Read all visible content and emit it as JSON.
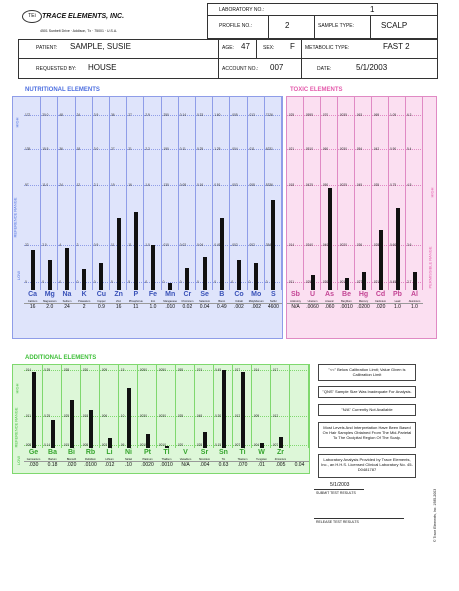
{
  "brand": {
    "name": "TRACE ELEMENTS, INC.",
    "address": "4501 Sunbelt Drive · Addison, Tx · 75001 · U.S.A."
  },
  "header": {
    "lab_no_label": "LABORATORY NO.:",
    "lab_no": "1",
    "profile_label": "PROFILE NO.:",
    "profile": "2",
    "sample_type_label": "SAMPLE TYPE:",
    "sample_type": "SCALP",
    "patient_label": "PATIENT:",
    "patient": "SAMPLE, SUSIE",
    "age_label": "AGE:",
    "age": "47",
    "sex_label": "SEX:",
    "sex": "F",
    "metabolic_label": "METABOLIC TYPE:",
    "metabolic": "FAST 2",
    "requested_label": "REQUESTED BY:",
    "requested": "HOUSE",
    "account_label": "ACCOUNT NO.:",
    "account": "007",
    "date_label": "DATE:",
    "date": "5/1/2003"
  },
  "nutritional": {
    "title": "NUTRITIONAL ELEMENTS",
    "side": {
      "high": "HIGH",
      "ref": "REFERENCE RANGE",
      "low": "LOW"
    },
    "elements": [
      {
        "sym": "Ca",
        "name": "Calcium",
        "val": "16",
        "lvl": 0.27,
        "scale": [
          "172",
          "135",
          "97",
          "22",
          "0"
        ]
      },
      {
        "sym": "Mg",
        "name": "Magnesium",
        "val": "2.0",
        "lvl": 0.2,
        "scale": [
          "20.0",
          "15.5",
          "11.0",
          "2.0",
          "0"
        ]
      },
      {
        "sym": "Na",
        "name": "Sodium",
        "val": "24",
        "lvl": 0.28,
        "scale": [
          "48",
          "36",
          "24",
          "4",
          "0"
        ]
      },
      {
        "sym": "K",
        "name": "Potassium",
        "val": "2",
        "lvl": 0.14,
        "scale": [
          "24",
          "18",
          "12",
          "2",
          "0"
        ]
      },
      {
        "sym": "Cu",
        "name": "Copper",
        "val": "0.9",
        "lvl": 0.18,
        "scale": [
          "3.9",
          "3.0",
          "2.1",
          "0.9",
          "0"
        ]
      },
      {
        "sym": "Zn",
        "name": "Zinc",
        "val": "16",
        "lvl": 0.48,
        "scale": [
          "36",
          "27",
          "19",
          "11",
          "5"
        ]
      },
      {
        "sym": "P",
        "name": "Phosphorus",
        "val": "11",
        "lvl": 0.52,
        "scale": [
          "27",
          "21",
          "16",
          "11",
          "5"
        ]
      },
      {
        "sym": "Fe",
        "name": "Iron",
        "val": "1.0",
        "lvl": 0.3,
        "scale": [
          "2.9",
          "2.2",
          "1.6",
          "1.0",
          "0"
        ]
      },
      {
        "sym": "Mn",
        "name": "Manganese",
        "val": ".010",
        "lvl": 0.05,
        "scale": [
          ".250",
          ".190",
          ".130",
          ".010",
          "0"
        ]
      },
      {
        "sym": "Cr",
        "name": "Chromium",
        "val": "0.02",
        "lvl": 0.15,
        "scale": [
          "0.14",
          "0.11",
          "0.08",
          "0.02",
          "0"
        ]
      },
      {
        "sym": "Se",
        "name": "Selenium",
        "val": "0.04",
        "lvl": 0.22,
        "scale": [
          "0.33",
          "0.25",
          "0.16",
          "0.04",
          "0"
        ]
      },
      {
        "sym": "B",
        "name": "Boron",
        "val": "0.49",
        "lvl": 0.48,
        "scale": [
          "1.60",
          "1.25",
          "0.91",
          "0.49",
          "0"
        ]
      },
      {
        "sym": "Co",
        "name": "Cobalt",
        "val": ".002",
        "lvl": 0.2,
        "scale": [
          ".005",
          ".004",
          ".003",
          ".002",
          "0"
        ]
      },
      {
        "sym": "Mo",
        "name": "Molybdenum",
        "val": ".002",
        "lvl": 0.18,
        "scale": [
          ".013",
          ".011",
          ".008",
          ".002",
          "0"
        ]
      },
      {
        "sym": "S",
        "name": "Sulfur",
        "val": "4600",
        "lvl": 0.6,
        "scale": [
          "7126",
          "6231",
          "5336",
          "3546",
          "0"
        ]
      }
    ]
  },
  "toxic": {
    "title": "TOXIC ELEMENTS",
    "side": {
      "high": "HIGH",
      "ref": "PERMISSIBLE RANGE",
      "low": ""
    },
    "elements": [
      {
        "sym": "Sb",
        "name": "Antimony",
        "val": "N/A",
        "lvl": 0.0,
        "scale": [
          ".025",
          ".021",
          ".018",
          ".014",
          ".011"
        ]
      },
      {
        "sym": "U",
        "name": "Uranium",
        "val": ".0060",
        "lvl": 0.1,
        "scale": [
          ".0595",
          ".0510",
          ".0425",
          ".0340",
          ".0255"
        ]
      },
      {
        "sym": "As",
        "name": "Arsenic",
        "val": ".060",
        "lvl": 0.68,
        "scale": [
          ".070",
          ".060",
          ".050",
          ".040",
          ".030"
        ]
      },
      {
        "sym": "Be",
        "name": "Beryllium",
        "val": ".0010",
        "lvl": 0.08,
        "scale": [
          ".0035",
          ".0030",
          ".0025",
          ".0020",
          ".0015"
        ]
      },
      {
        "sym": "Hg",
        "name": "Mercury",
        "val": ".0200",
        "lvl": 0.12,
        "scale": [
          ".063",
          ".054",
          ".045",
          ".036",
          ".027"
        ]
      },
      {
        "sym": "Cd",
        "name": "Cadmium",
        "val": ".020",
        "lvl": 0.4,
        "scale": [
          ".069",
          ".042",
          ".035",
          ".028",
          ".021"
        ]
      },
      {
        "sym": "Pb",
        "name": "Lead",
        "val": "1.0",
        "lvl": 0.55,
        "scale": [
          "1.05",
          "0.90",
          "0.75",
          "0.60",
          "0.45"
        ]
      },
      {
        "sym": "Al",
        "name": "Aluminum",
        "val": "1.0",
        "lvl": 0.12,
        "scale": [
          "6.3",
          "5.4",
          "4.5",
          "3.6",
          "2.7"
        ]
      }
    ]
  },
  "additional": {
    "title": "ADDITIONAL ELEMENTS",
    "side": {
      "high": "HIGH",
      "ref": "REFERENCE RANGE",
      "low": "LOW"
    },
    "elements": [
      {
        "sym": "Ge",
        "name": "Germanium",
        "val": ".030",
        "lvl": 0.95,
        "scale": [
          ".014",
          ".011",
          ".008"
        ]
      },
      {
        "sym": "Ba",
        "name": "Barium",
        "val": "0.18",
        "lvl": 0.35,
        "scale": [
          "0.39",
          "0.25",
          "0.14"
        ]
      },
      {
        "sym": "Bi",
        "name": "Bismuth",
        "val": ".020",
        "lvl": 0.6,
        "scale": [
          ".038",
          ".025",
          ".015"
        ]
      },
      {
        "sym": "Rb",
        "name": "Rubidium",
        "val": ".0100",
        "lvl": 0.48,
        "scale": [
          ".030",
          ".018",
          ".008"
        ]
      },
      {
        "sym": "Li",
        "name": "Lithium",
        "val": ".012",
        "lvl": 0.12,
        "scale": [
          ".009",
          ".006",
          ".003"
        ]
      },
      {
        "sym": "Ni",
        "name": "Nickel",
        "val": ".10",
        "lvl": 0.75,
        "scale": [
          ".15",
          ".10",
          ".06"
        ]
      },
      {
        "sym": "Pt",
        "name": "Platinum",
        "val": ".0020",
        "lvl": 0.18,
        "scale": [
          ".0050",
          ".0030",
          ".0010"
        ]
      },
      {
        "sym": "Tl",
        "name": "Thallium",
        "val": ".0010",
        "lvl": 0.02,
        "scale": [
          ".0050",
          ".0030",
          ".0010"
        ]
      },
      {
        "sym": "V",
        "name": "Vanadium",
        "val": "N/A",
        "lvl": 0.0,
        "scale": [
          ".055",
          ".035",
          ".020"
        ]
      },
      {
        "sym": "Sr",
        "name": "Strontium",
        "val": ".004",
        "lvl": 0.2,
        "scale": [
          ".074",
          ".048",
          ".028"
        ]
      },
      {
        "sym": "Sn",
        "name": "Tin",
        "val": "0.63",
        "lvl": 0.98,
        "scale": [
          "0.45",
          "0.30",
          "0.15"
        ]
      },
      {
        "sym": "Ti",
        "name": "Titanium",
        "val": ".070",
        "lvl": 0.95,
        "scale": [
          ".017",
          ".012",
          ".007"
        ]
      },
      {
        "sym": "W",
        "name": "Tungsten",
        "val": ".01",
        "lvl": 0.06,
        "scale": [
          ".014",
          ".009",
          ".004"
        ]
      },
      {
        "sym": "Zr",
        "name": "Zirconium",
        "val": ".005",
        "lvl": 0.14,
        "scale": [
          ".017",
          ".012",
          ".007"
        ]
      },
      {
        "sym": "",
        "name": "",
        "val": "0.04",
        "lvl": 0,
        "scale": [
          "",
          "",
          ""
        ]
      }
    ]
  },
  "notes": [
    "\"<<\" Below Calibration Limit; Value Given is Calibration Limit",
    "\"QNS\" Sample Size Was Inadequate For Analysis.",
    "\"N/A\" Currently Not Available",
    "Most Levels And Interpretation Have Been Based On Hair Samples Obtained From The Mid-Parietal To The Occipital Region Of The Scalp.",
    "Laboratory Analysis Provided by Trace Elements, Inc., an H.H.S. Licensed Clinical Laboratory   No. 45-D0481787"
  ],
  "footer": {
    "date": "5/1/2003",
    "retest": "SUBMIT TEST RESULTS",
    "release": "RELEASE TEST RESULTS",
    "copyright": "© Trace Elements, Inc. 1985-2003"
  },
  "colors": {
    "blue": "#dfe4fb",
    "blueLine": "#8f9de8",
    "pink": "#fbdff1",
    "pinkLine": "#e08ac4",
    "green": "#ddf7d8",
    "greenLine": "#7fd86e",
    "title": "#4d6fe0",
    "pinkTitle": "#e45aab",
    "greenTitle": "#3fbf39"
  }
}
